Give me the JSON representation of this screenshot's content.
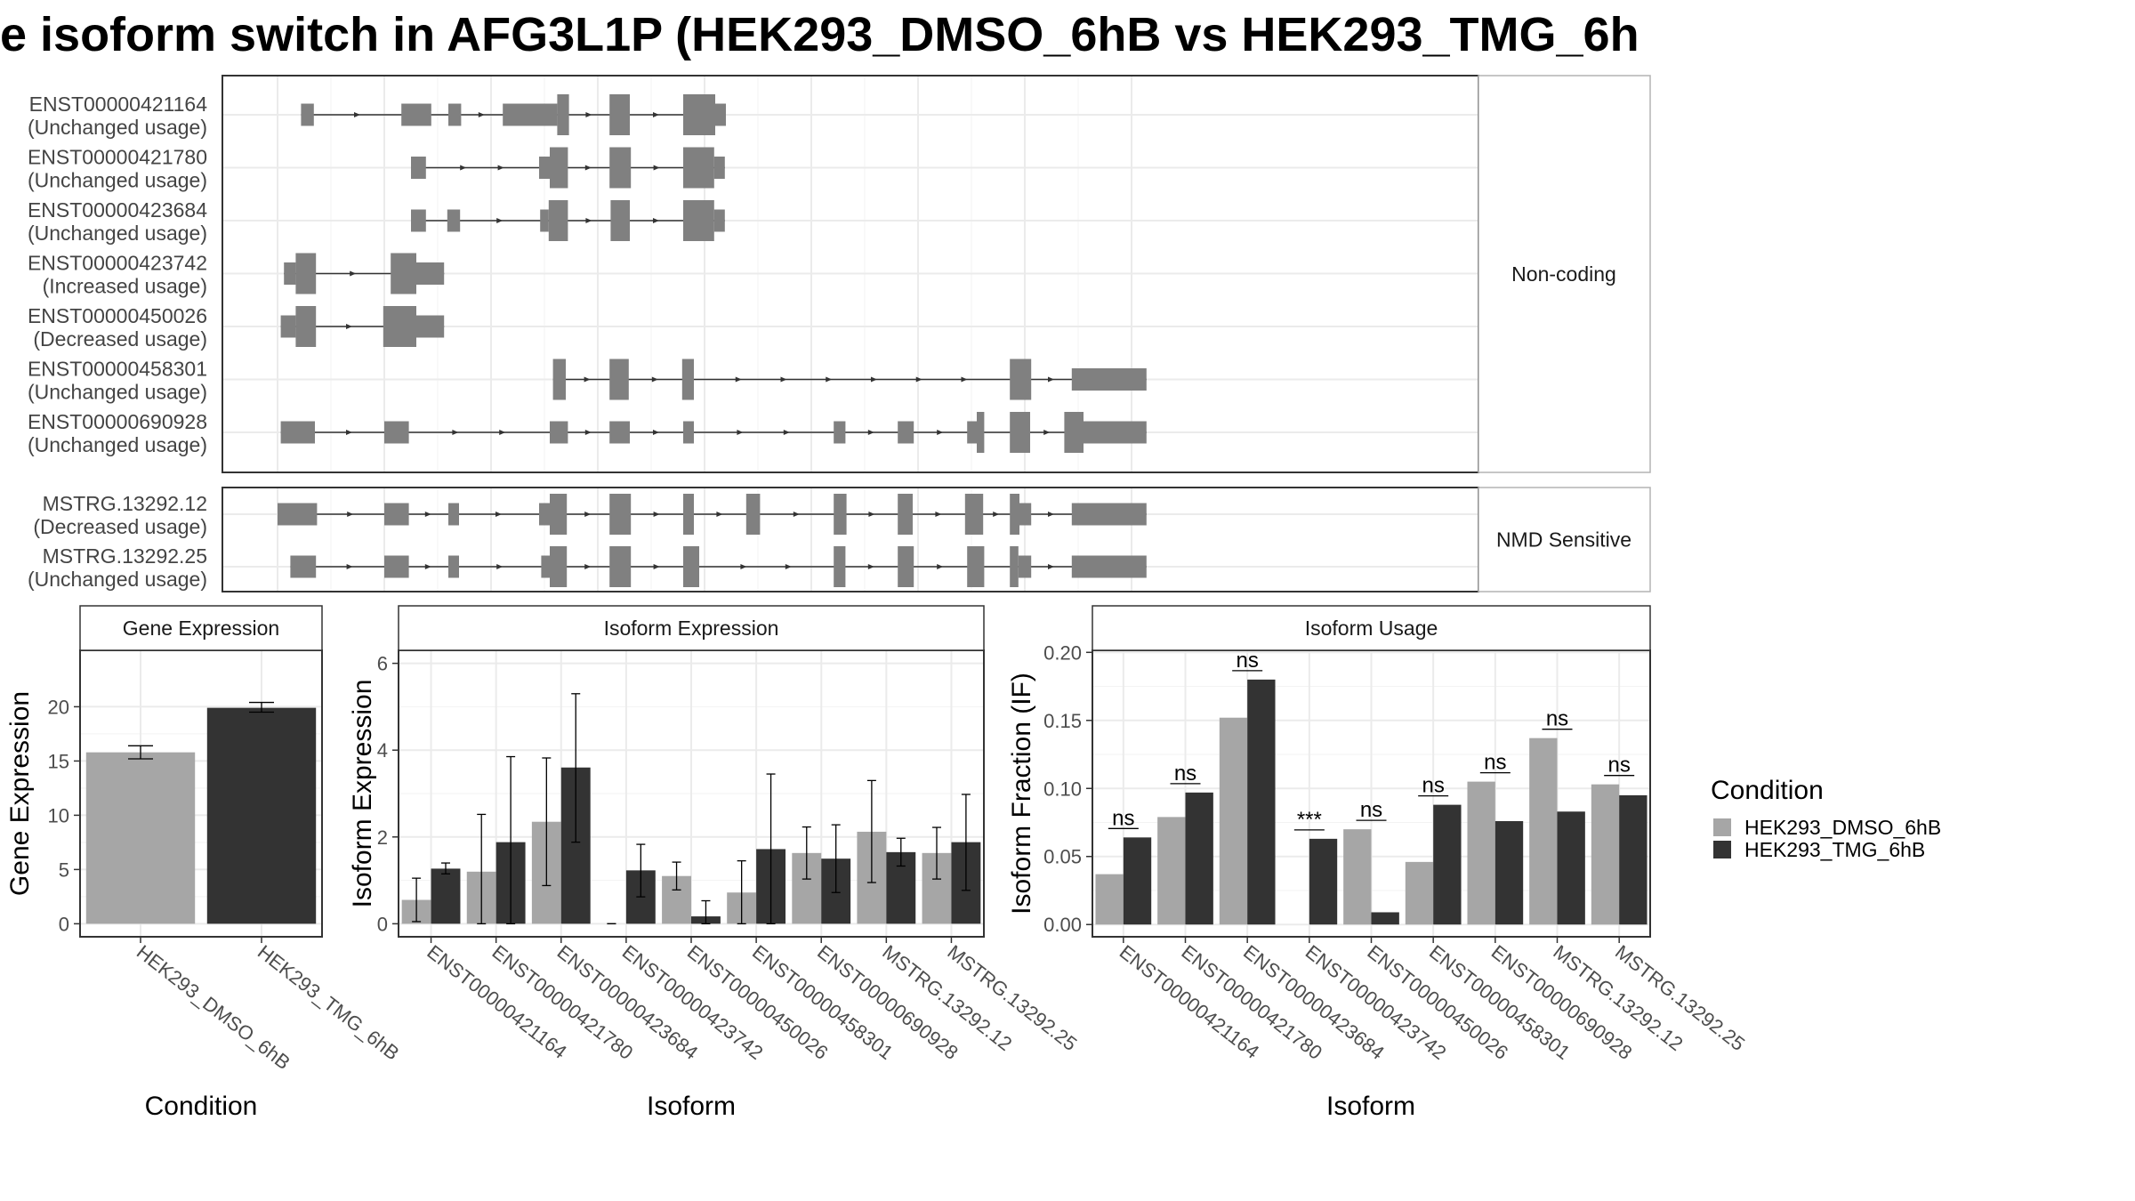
{
  "title": "e isoform switch in AFG3L1P (HEK293_DMSO_6hB vs HEK293_TMG_6h",
  "colors": {
    "dmso": "#a6a6a6",
    "tmg": "#333333",
    "exon": "#808080",
    "intron": "#333333",
    "grid": "#ebebeb",
    "panel_border": "#333333",
    "strip_border": "#b3b3b3"
  },
  "structure_panels": [
    {
      "strip": "Non-coding",
      "transcripts": [
        {
          "id": "ENST00000421164",
          "status": "(Unchanged usage)",
          "exons": [
            [
              0.22,
              0.34,
              "t"
            ],
            [
              1.16,
              1.44,
              "t"
            ],
            [
              1.6,
              1.72,
              "t"
            ],
            [
              2.11,
              2.62,
              "t"
            ],
            [
              2.62,
              2.73,
              "T"
            ],
            [
              3.11,
              3.3,
              "T"
            ],
            [
              3.8,
              4.1,
              "T"
            ],
            [
              4.1,
              4.2,
              "t"
            ]
          ]
        },
        {
          "id": "ENST00000421780",
          "status": "(Unchanged usage)",
          "exons": [
            [
              1.25,
              1.39,
              "t"
            ],
            [
              2.45,
              2.55,
              "t"
            ],
            [
              2.55,
              2.72,
              "T"
            ],
            [
              3.11,
              3.31,
              "T"
            ],
            [
              3.8,
              4.09,
              "T"
            ],
            [
              4.09,
              4.19,
              "t"
            ]
          ]
        },
        {
          "id": "ENST00000423684",
          "status": "(Unchanged usage)",
          "exons": [
            [
              1.25,
              1.39,
              "t"
            ],
            [
              1.59,
              1.71,
              "t"
            ],
            [
              2.46,
              2.54,
              "t"
            ],
            [
              2.54,
              2.72,
              "T"
            ],
            [
              3.12,
              3.3,
              "T"
            ],
            [
              3.8,
              4.09,
              "T"
            ],
            [
              4.09,
              4.19,
              "t"
            ]
          ]
        },
        {
          "id": "ENST00000423742",
          "status": "(Increased usage)",
          "exons": [
            [
              0.06,
              0.17,
              "t"
            ],
            [
              0.17,
              0.36,
              "T"
            ],
            [
              1.06,
              1.3,
              "T"
            ],
            [
              1.3,
              1.56,
              "t"
            ]
          ]
        },
        {
          "id": "ENST00000450026",
          "status": "(Decreased usage)",
          "exons": [
            [
              0.03,
              0.17,
              "t"
            ],
            [
              0.17,
              0.36,
              "T"
            ],
            [
              0.99,
              1.3,
              "T"
            ],
            [
              1.3,
              1.56,
              "t"
            ]
          ]
        },
        {
          "id": "ENST00000458301",
          "status": "(Unchanged usage)",
          "exons": [
            [
              2.58,
              2.7,
              "T"
            ],
            [
              3.11,
              3.29,
              "T"
            ],
            [
              3.79,
              3.9,
              "T"
            ],
            [
              6.86,
              7.06,
              "T"
            ],
            [
              7.44,
              8.14,
              "t"
            ]
          ]
        },
        {
          "id": "ENST00000690928",
          "status": "(Unchanged usage)",
          "exons": [
            [
              0.03,
              0.35,
              "t"
            ],
            [
              1.0,
              1.23,
              "t"
            ],
            [
              2.55,
              2.72,
              "t"
            ],
            [
              3.11,
              3.3,
              "t"
            ],
            [
              3.8,
              3.9,
              "t"
            ],
            [
              5.21,
              5.32,
              "t"
            ],
            [
              5.81,
              5.96,
              "t"
            ],
            [
              6.46,
              6.55,
              "t"
            ],
            [
              6.55,
              6.62,
              "T"
            ],
            [
              6.86,
              7.05,
              "T"
            ],
            [
              7.37,
              7.55,
              "T"
            ],
            [
              7.55,
              8.14,
              "t"
            ]
          ]
        }
      ]
    },
    {
      "strip": "NMD Sensitive",
      "transcripts": [
        {
          "id": "MSTRG.13292.12",
          "status": "(Decreased usage)",
          "exons": [
            [
              0.0,
              0.37,
              "t"
            ],
            [
              1.0,
              1.23,
              "t"
            ],
            [
              1.6,
              1.7,
              "t"
            ],
            [
              2.45,
              2.55,
              "t"
            ],
            [
              2.55,
              2.71,
              "T"
            ],
            [
              3.11,
              3.31,
              "T"
            ],
            [
              3.8,
              3.9,
              "T"
            ],
            [
              4.39,
              4.52,
              "T"
            ],
            [
              5.21,
              5.33,
              "T"
            ],
            [
              5.81,
              5.95,
              "T"
            ],
            [
              6.44,
              6.61,
              "T"
            ],
            [
              6.86,
              6.95,
              "T"
            ],
            [
              6.95,
              7.06,
              "t"
            ],
            [
              7.44,
              8.14,
              "t"
            ]
          ]
        },
        {
          "id": "MSTRG.13292.25",
          "status": "(Unchanged usage)",
          "exons": [
            [
              0.12,
              0.36,
              "t"
            ],
            [
              1.0,
              1.23,
              "t"
            ],
            [
              1.6,
              1.7,
              "t"
            ],
            [
              2.47,
              2.55,
              "t"
            ],
            [
              2.55,
              2.71,
              "T"
            ],
            [
              3.11,
              3.31,
              "T"
            ],
            [
              3.8,
              3.95,
              "T"
            ],
            [
              5.21,
              5.32,
              "T"
            ],
            [
              5.81,
              5.96,
              "T"
            ],
            [
              6.46,
              6.62,
              "T"
            ],
            [
              6.86,
              6.94,
              "T"
            ],
            [
              6.94,
              7.06,
              "t"
            ],
            [
              7.44,
              8.14,
              "t"
            ]
          ]
        }
      ]
    }
  ],
  "chart_data": [
    {
      "type": "bar",
      "title": "Gene Expression",
      "xlabel": "Condition",
      "ylabel": "Gene Expression",
      "ylim": [
        -1.2,
        25.2
      ],
      "yticks": [
        0,
        5,
        10,
        15,
        20
      ],
      "categories": [
        "HEK293_DMSO_6hB",
        "HEK293_TMG_6hB"
      ],
      "values": [
        15.8,
        19.9
      ],
      "errors": [
        [
          15.2,
          16.4
        ],
        [
          19.5,
          20.4
        ]
      ]
    },
    {
      "type": "bar",
      "title": "Isoform Expression",
      "xlabel": "Isoform",
      "ylabel": "Isoform Expression",
      "ylim": [
        -0.3,
        6.3
      ],
      "yticks": [
        0,
        2,
        4,
        6
      ],
      "categories": [
        "ENST00000421164",
        "ENST00000421780",
        "ENST00000423684",
        "ENST00000423742",
        "ENST00000450026",
        "ENST00000458301",
        "ENST00000690928",
        "MSTRG.13292.12",
        "MSTRG.13292.25"
      ],
      "series": [
        {
          "name": "HEK293_DMSO_6hB",
          "values": [
            0.55,
            1.2,
            2.35,
            0.0,
            1.1,
            0.72,
            1.63,
            2.12,
            1.63
          ],
          "errors": [
            [
              0.05,
              1.05
            ],
            [
              0.0,
              2.52
            ],
            [
              0.88,
              3.82
            ],
            [
              0.0,
              0.0
            ],
            [
              0.78,
              1.42
            ],
            [
              0.0,
              1.45
            ],
            [
              1.03,
              2.23
            ],
            [
              0.95,
              3.3
            ],
            [
              1.03,
              2.22
            ]
          ]
        },
        {
          "name": "HEK293_TMG_6hB",
          "values": [
            1.27,
            1.88,
            3.6,
            1.23,
            0.17,
            1.72,
            1.5,
            1.65,
            1.88
          ],
          "errors": [
            [
              1.15,
              1.4
            ],
            [
              0.0,
              3.85
            ],
            [
              1.88,
              5.3
            ],
            [
              0.62,
              1.83
            ],
            [
              0.0,
              0.53
            ],
            [
              0.0,
              3.45
            ],
            [
              0.72,
              2.28
            ],
            [
              1.33,
              1.97
            ],
            [
              0.77,
              2.98
            ]
          ]
        }
      ]
    },
    {
      "type": "bar",
      "title": "Isoform Usage",
      "xlabel": "Isoform",
      "ylabel": "Isoform Fraction (IF)",
      "ylim": [
        -0.009,
        0.2015
      ],
      "yticks": [
        0.0,
        0.05,
        0.1,
        0.15,
        0.2
      ],
      "yticklabels": [
        "0.00",
        "0.05",
        "0.10",
        "0.15",
        "0.20"
      ],
      "categories": [
        "ENST00000421164",
        "ENST00000421780",
        "ENST00000423684",
        "ENST00000423742",
        "ENST00000450026",
        "ENST00000458301",
        "ENST00000690928",
        "MSTRG.13292.12",
        "MSTRG.13292.25"
      ],
      "series": [
        {
          "name": "HEK293_DMSO_6hB",
          "values": [
            0.037,
            0.079,
            0.152,
            0.0,
            0.07,
            0.046,
            0.105,
            0.137,
            0.103
          ]
        },
        {
          "name": "HEK293_TMG_6hB",
          "values": [
            0.064,
            0.097,
            0.18,
            0.063,
            0.009,
            0.088,
            0.076,
            0.083,
            0.095
          ]
        }
      ],
      "significance": [
        "ns",
        "ns",
        "ns",
        "***",
        "ns",
        "ns",
        "ns",
        "ns",
        "ns"
      ]
    }
  ],
  "legend": {
    "title": "Condition",
    "items": [
      "HEK293_DMSO_6hB",
      "HEK293_TMG_6hB"
    ]
  }
}
